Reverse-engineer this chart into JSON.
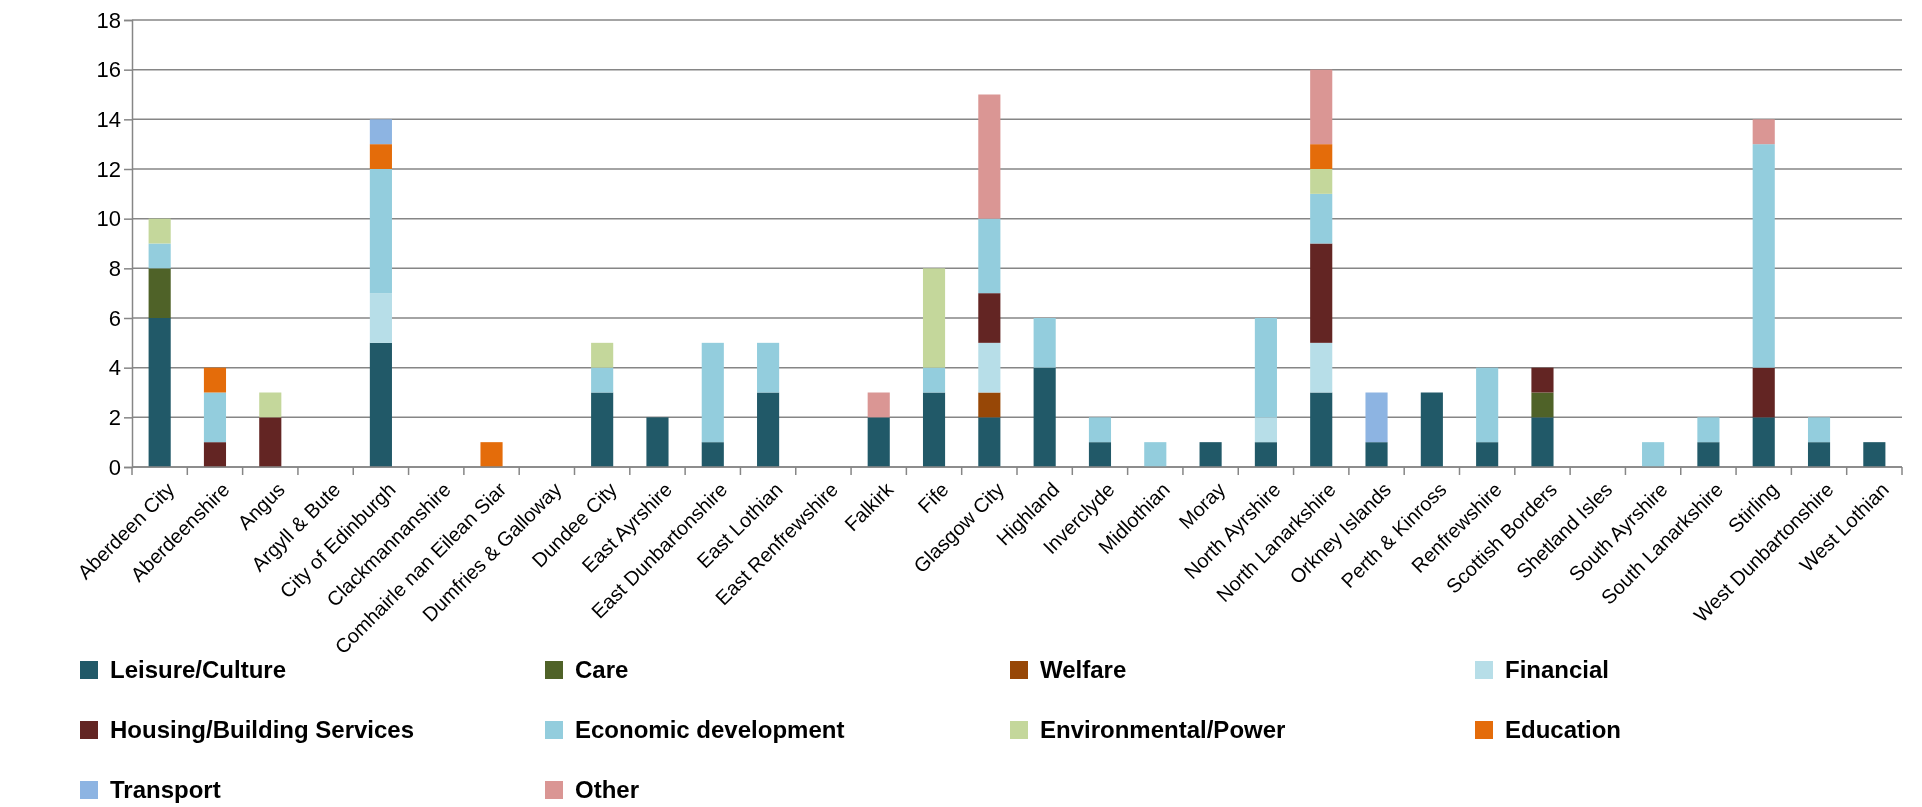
{
  "chart_data": {
    "type": "bar",
    "stacked": true,
    "grid": "y",
    "legend": "bottom",
    "categories": [
      "Aberdeen City",
      "Aberdeenshire",
      "Angus",
      "Argyll & Bute",
      "City of Edinburgh",
      "Clackmannanshire",
      "Comhairle nan Eilean Siar",
      "Dumfries & Galloway",
      "Dundee City",
      "East Ayrshire",
      "East Dunbartonshire",
      "East Lothian",
      "East Renfrewshire",
      "Falkirk",
      "Fife",
      "Glasgow City",
      "Highland",
      "Inverclyde",
      "Midlothian",
      "Moray",
      "North Ayrshire",
      "North Lanarkshire",
      "Orkney Islands",
      "Perth & Kinross",
      "Renfrewshire",
      "Scottish Borders",
      "Shetland Isles",
      "South Ayrshire",
      "South Lanarkshire",
      "Stirling",
      "West Dunbartonshire",
      "West Lothian"
    ],
    "ylim": [
      0,
      18
    ],
    "yticks": [
      0,
      2,
      4,
      6,
      8,
      10,
      12,
      14,
      16,
      18
    ],
    "series": [
      {
        "name": "Leisure/Culture",
        "color": "#215968",
        "values": [
          6,
          0,
          0,
          0,
          5,
          0,
          0,
          0,
          3,
          2,
          1,
          3,
          0,
          2,
          3,
          2,
          4,
          1,
          0,
          1,
          1,
          3,
          1,
          3,
          1,
          2,
          0,
          0,
          1,
          2,
          1,
          1
        ]
      },
      {
        "name": "Care",
        "color": "#4f6228",
        "values": [
          2,
          0,
          0,
          0,
          0,
          0,
          0,
          0,
          0,
          0,
          0,
          0,
          0,
          0,
          0,
          0,
          0,
          0,
          0,
          0,
          0,
          0,
          0,
          0,
          0,
          1,
          0,
          0,
          0,
          0,
          0,
          0
        ]
      },
      {
        "name": "Welfare",
        "color": "#974706",
        "values": [
          0,
          0,
          0,
          0,
          0,
          0,
          0,
          0,
          0,
          0,
          0,
          0,
          0,
          0,
          0,
          1,
          0,
          0,
          0,
          0,
          0,
          0,
          0,
          0,
          0,
          0,
          0,
          0,
          0,
          0,
          0,
          0
        ]
      },
      {
        "name": "Financial",
        "color": "#b7dee8",
        "values": [
          0,
          0,
          0,
          0,
          2,
          0,
          0,
          0,
          0,
          0,
          0,
          0,
          0,
          0,
          0,
          2,
          0,
          0,
          0,
          0,
          1,
          2,
          0,
          0,
          0,
          0,
          0,
          0,
          0,
          0,
          0,
          0
        ]
      },
      {
        "name": "Housing/Building Services",
        "color": "#632523",
        "values": [
          0,
          1,
          2,
          0,
          0,
          0,
          0,
          0,
          0,
          0,
          0,
          0,
          0,
          0,
          0,
          2,
          0,
          0,
          0,
          0,
          0,
          4,
          0,
          0,
          0,
          1,
          0,
          0,
          0,
          2,
          0,
          0
        ]
      },
      {
        "name": "Economic development",
        "color": "#93cddd",
        "values": [
          1,
          2,
          0,
          0,
          5,
          0,
          0,
          0,
          1,
          0,
          4,
          2,
          0,
          0,
          1,
          3,
          2,
          1,
          1,
          0,
          4,
          2,
          0,
          0,
          3,
          0,
          0,
          1,
          1,
          9,
          1,
          0
        ]
      },
      {
        "name": "Environmental/Power",
        "color": "#c4d79b",
        "values": [
          1,
          0,
          1,
          0,
          0,
          0,
          0,
          0,
          1,
          0,
          0,
          0,
          0,
          0,
          4,
          0,
          0,
          0,
          0,
          0,
          0,
          1,
          0,
          0,
          0,
          0,
          0,
          0,
          0,
          0,
          0,
          0
        ]
      },
      {
        "name": "Education",
        "color": "#e46c0a",
        "values": [
          0,
          1,
          0,
          0,
          1,
          0,
          1,
          0,
          0,
          0,
          0,
          0,
          0,
          0,
          0,
          0,
          0,
          0,
          0,
          0,
          0,
          1,
          0,
          0,
          0,
          0,
          0,
          0,
          0,
          0,
          0,
          0
        ]
      },
      {
        "name": "Transport",
        "color": "#8db4e2",
        "values": [
          0,
          0,
          0,
          0,
          1,
          0,
          0,
          0,
          0,
          0,
          0,
          0,
          0,
          0,
          0,
          0,
          0,
          0,
          0,
          0,
          0,
          0,
          2,
          0,
          0,
          0,
          0,
          0,
          0,
          0,
          0,
          0
        ]
      },
      {
        "name": "Other",
        "color": "#da9694",
        "values": [
          0,
          0,
          0,
          0,
          0,
          0,
          0,
          0,
          0,
          0,
          0,
          0,
          0,
          1,
          0,
          5,
          0,
          0,
          0,
          0,
          0,
          3,
          0,
          0,
          0,
          0,
          0,
          0,
          0,
          1,
          0,
          0
        ]
      }
    ]
  }
}
